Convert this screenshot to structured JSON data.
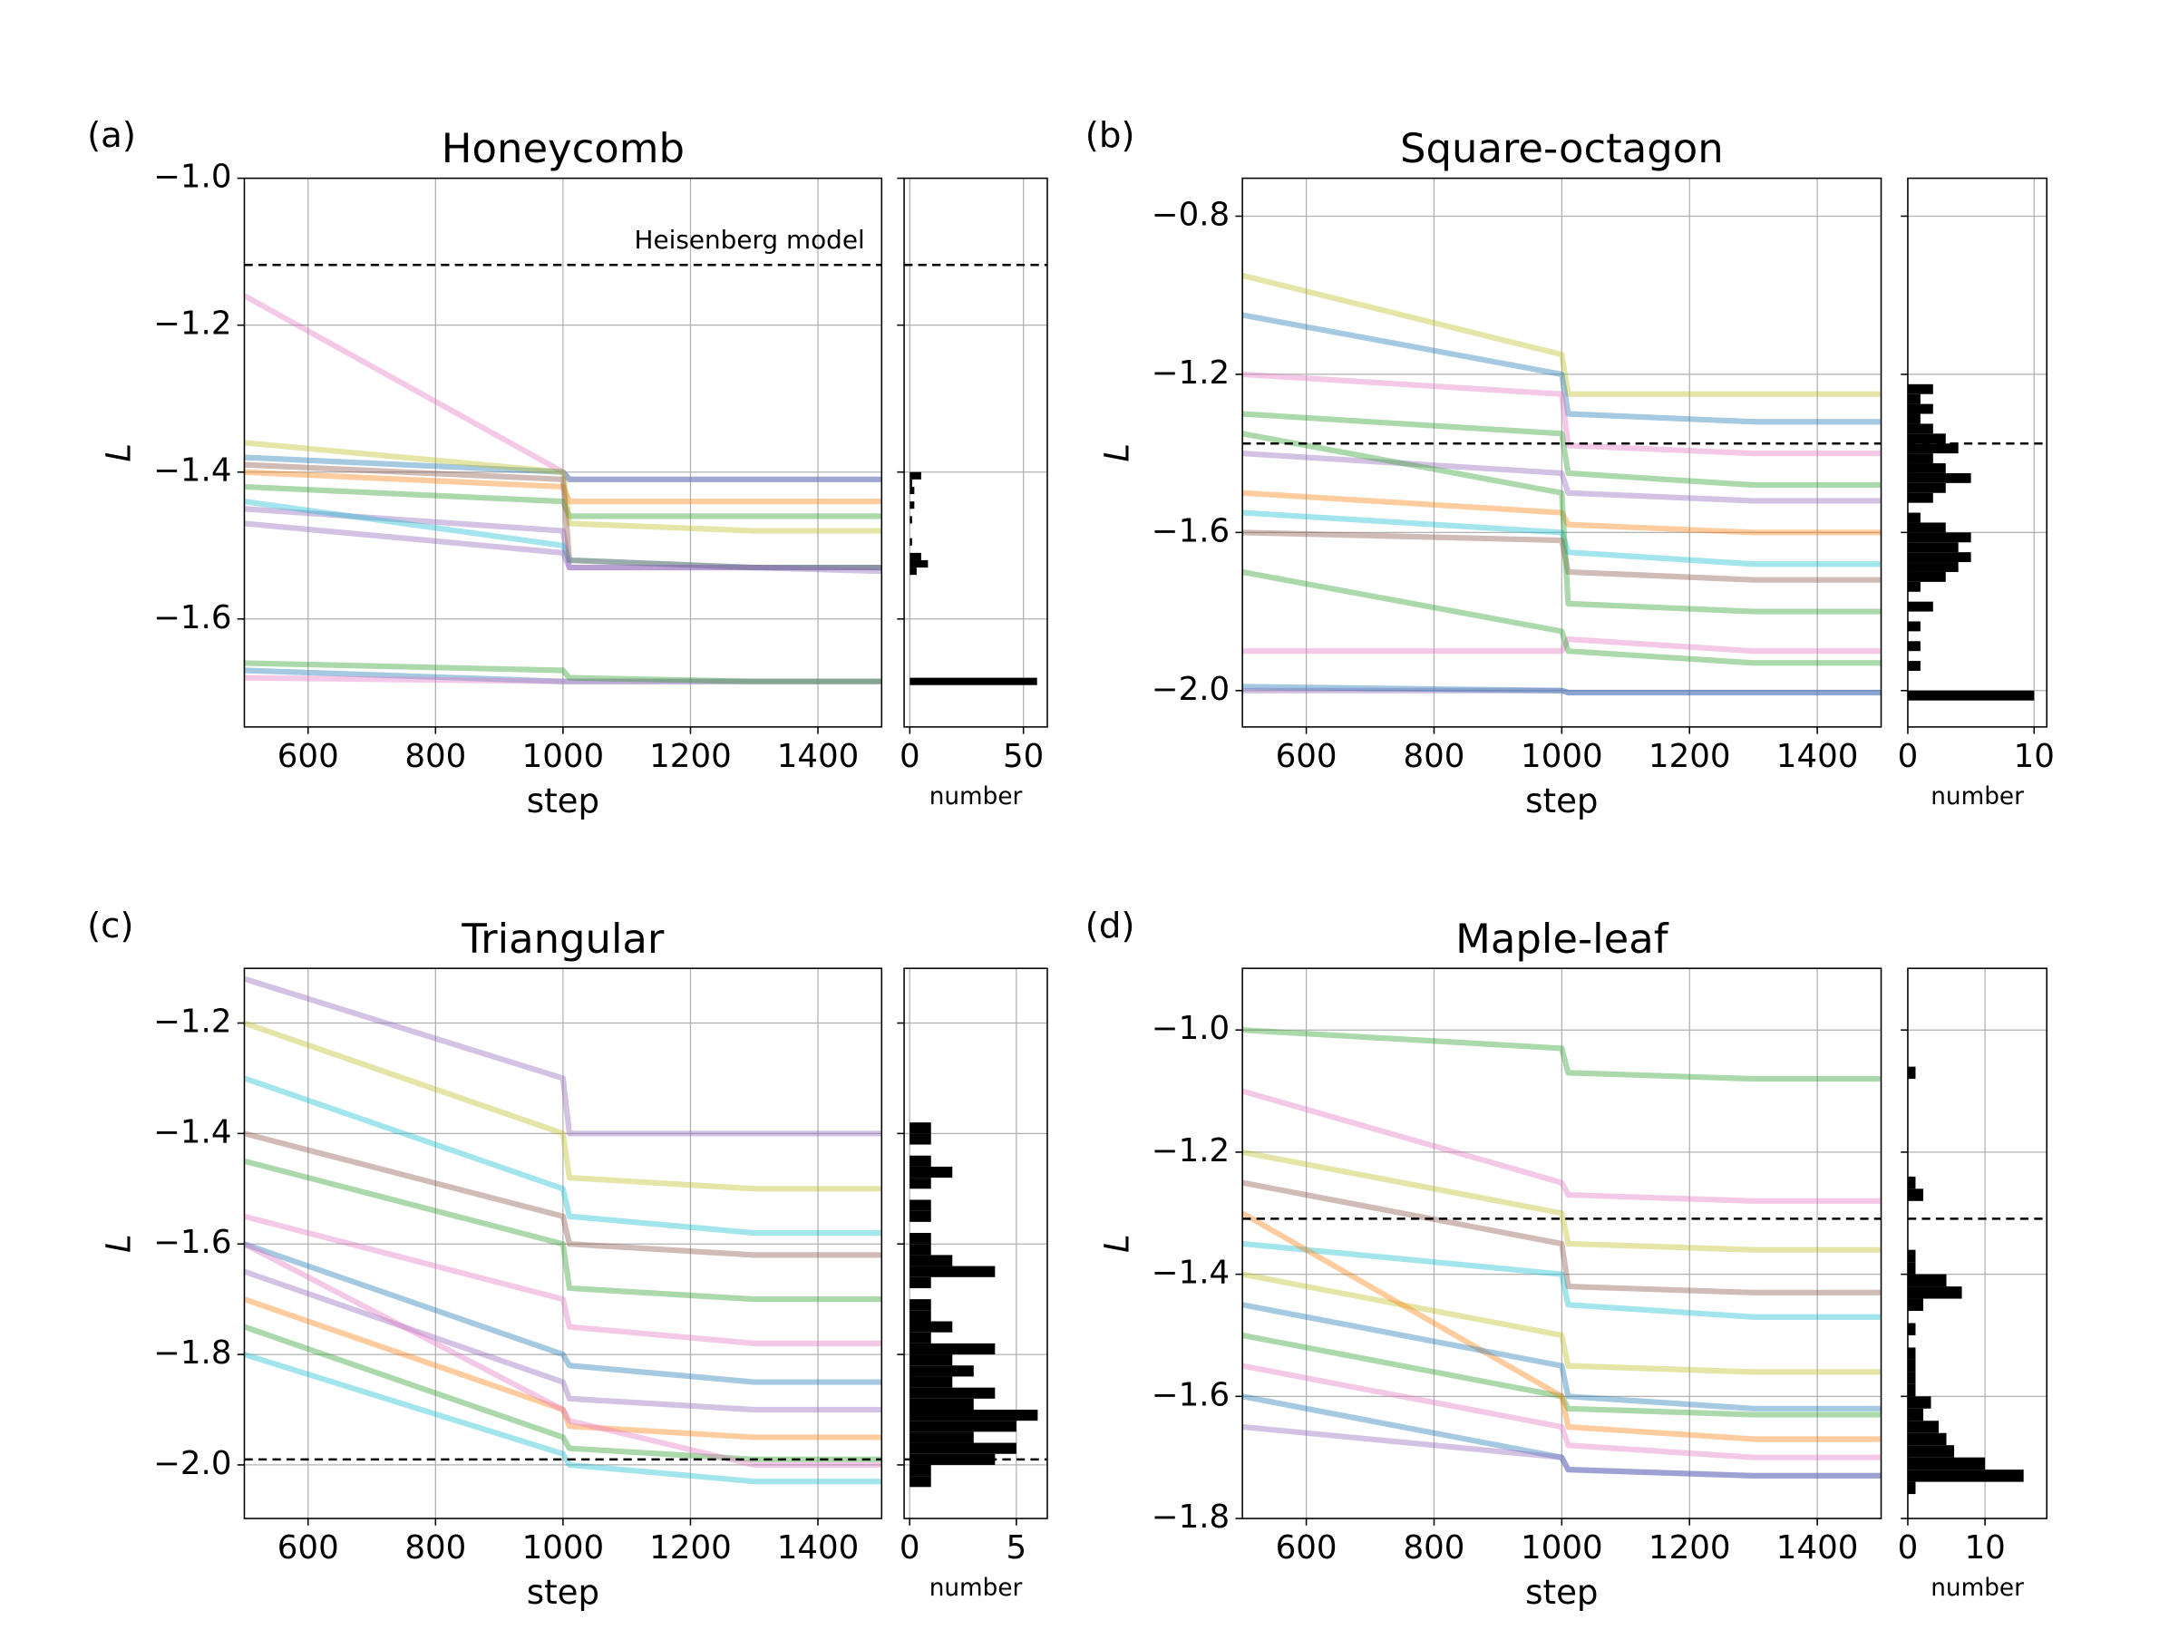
{
  "chart_data": [
    {
      "type": "line",
      "panel": "(a)",
      "title": "Honeycomb",
      "xlabel": "step",
      "ylabel": "L",
      "x": [
        500,
        1000,
        1010,
        1300,
        1500
      ],
      "xlim": [
        500,
        1500
      ],
      "xticks": [
        600,
        800,
        1000,
        1200,
        1400
      ],
      "ylim": [
        -1.747,
        -1.0
      ],
      "yticks": [
        {
          "value": -1.6,
          "label": "−1.6"
        },
        {
          "value": -1.4,
          "label": "−1.4"
        },
        {
          "value": -1.2,
          "label": "−1.2"
        },
        {
          "value": -1.0,
          "label": "−1.0"
        }
      ],
      "grid": true,
      "reference": -1.118,
      "annotation": "Heisenberg model",
      "series": [
        {
          "color": "#e377c2",
          "values": [
            -1.16,
            -1.4,
            -1.41,
            -1.41,
            -1.41
          ]
        },
        {
          "color": "#1f77b4",
          "values": [
            -1.38,
            -1.4,
            -1.41,
            -1.41,
            -1.41
          ]
        },
        {
          "color": "#ff7f0e",
          "values": [
            -1.4,
            -1.42,
            -1.44,
            -1.44,
            -1.44
          ]
        },
        {
          "color": "#2ca02c",
          "values": [
            -1.42,
            -1.44,
            -1.46,
            -1.46,
            -1.46
          ]
        },
        {
          "color": "#9467bd",
          "values": [
            -1.45,
            -1.48,
            -1.53,
            -1.53,
            -1.53
          ]
        },
        {
          "color": "#bcbd22",
          "values": [
            -1.36,
            -1.4,
            -1.47,
            -1.48,
            -1.48
          ]
        },
        {
          "color": "#17becf",
          "values": [
            -1.44,
            -1.5,
            -1.52,
            -1.53,
            -1.53
          ]
        },
        {
          "color": "#8c564b",
          "values": [
            -1.39,
            -1.41,
            -1.52,
            -1.53,
            -1.53
          ]
        },
        {
          "color": "#9467bd",
          "values": [
            -1.47,
            -1.51,
            -1.53,
            -1.53,
            -1.535
          ]
        },
        {
          "color": "#1f77b4",
          "values": [
            -1.67,
            -1.685,
            -1.685,
            -1.685,
            -1.685
          ]
        },
        {
          "color": "#e377c2",
          "values": [
            -1.68,
            -1.685,
            -1.685,
            -1.685,
            -1.685
          ]
        },
        {
          "color": "#2ca02c",
          "values": [
            -1.66,
            -1.67,
            -1.68,
            -1.685,
            -1.685
          ]
        }
      ],
      "histogram": {
        "type": "histogram",
        "xlabel": "number",
        "color": "#000000",
        "xlim": [
          -2.5,
          60.5
        ],
        "xticks": [
          0,
          50
        ],
        "bins": [
          -1.7,
          -1.69,
          -1.68,
          -1.67,
          -1.66,
          -1.65,
          -1.64,
          -1.63,
          -1.62,
          -1.61,
          -1.6,
          -1.59,
          -1.58,
          -1.57,
          -1.56,
          -1.55,
          -1.54,
          -1.53,
          -1.52,
          -1.51,
          -1.5,
          -1.49,
          -1.48,
          -1.47,
          -1.46,
          -1.45,
          -1.44,
          -1.43,
          -1.42,
          -1.41,
          -1.4
        ],
        "counts": [
          0,
          56,
          0,
          0,
          0,
          0,
          0,
          0,
          0,
          0,
          0,
          0,
          0,
          0,
          0,
          0,
          3,
          8,
          5,
          0,
          1,
          0,
          0,
          1,
          0,
          2,
          0,
          2,
          1,
          5
        ]
      }
    },
    {
      "type": "line",
      "panel": "(b)",
      "title": "Square-octagon",
      "xlabel": "step",
      "ylabel": "L",
      "x": [
        500,
        1000,
        1010,
        1300,
        1500
      ],
      "xlim": [
        500,
        1500
      ],
      "xticks": [
        600,
        800,
        1000,
        1200,
        1400
      ],
      "ylim": [
        -2.092,
        -0.704
      ],
      "yticks": [
        {
          "value": -2.0,
          "label": "−2.0"
        },
        {
          "value": -1.6,
          "label": "−1.6"
        },
        {
          "value": -1.2,
          "label": "−1.2"
        },
        {
          "value": -0.8,
          "label": "−0.8"
        }
      ],
      "grid": true,
      "reference": -1.375,
      "series": [
        {
          "color": "#bcbd22",
          "values": [
            -0.95,
            -1.15,
            -1.25,
            -1.25,
            -1.25
          ]
        },
        {
          "color": "#1f77b4",
          "values": [
            -1.05,
            -1.2,
            -1.3,
            -1.32,
            -1.32
          ]
        },
        {
          "color": "#e377c2",
          "values": [
            -1.2,
            -1.25,
            -1.38,
            -1.4,
            -1.4
          ]
        },
        {
          "color": "#2ca02c",
          "values": [
            -1.3,
            -1.35,
            -1.45,
            -1.48,
            -1.48
          ]
        },
        {
          "color": "#9467bd",
          "values": [
            -1.4,
            -1.45,
            -1.5,
            -1.52,
            -1.52
          ]
        },
        {
          "color": "#ff7f0e",
          "values": [
            -1.5,
            -1.55,
            -1.58,
            -1.6,
            -1.6
          ]
        },
        {
          "color": "#17becf",
          "values": [
            -1.55,
            -1.6,
            -1.65,
            -1.68,
            -1.68
          ]
        },
        {
          "color": "#8c564b",
          "values": [
            -1.6,
            -1.62,
            -1.7,
            -1.72,
            -1.72
          ]
        },
        {
          "color": "#2ca02c",
          "values": [
            -1.35,
            -1.5,
            -1.78,
            -1.8,
            -1.8
          ]
        },
        {
          "color": "#e377c2",
          "values": [
            -1.9,
            -1.9,
            -1.87,
            -1.9,
            -1.9
          ]
        },
        {
          "color": "#2ca02c",
          "values": [
            -1.7,
            -1.85,
            -1.9,
            -1.93,
            -1.93
          ]
        },
        {
          "color": "#9467bd",
          "values": [
            -2.0,
            -2.0,
            -2.005,
            -2.005,
            -2.005
          ]
        },
        {
          "color": "#1f77b4",
          "values": [
            -1.99,
            -2.0,
            -2.005,
            -2.005,
            -2.005
          ]
        }
      ],
      "histogram": {
        "type": "histogram",
        "xlabel": "number",
        "color": "#000000",
        "xlim": [
          0,
          11
        ],
        "xticks": [
          0,
          10
        ],
        "bins": [
          -2.025,
          -2.0,
          -1.975,
          -1.95,
          -1.925,
          -1.9,
          -1.875,
          -1.85,
          -1.825,
          -1.8,
          -1.775,
          -1.75,
          -1.725,
          -1.7,
          -1.675,
          -1.65,
          -1.625,
          -1.6,
          -1.575,
          -1.55,
          -1.525,
          -1.5,
          -1.475,
          -1.45,
          -1.425,
          -1.4,
          -1.375,
          -1.35,
          -1.325,
          -1.3,
          -1.275,
          -1.25,
          -1.225
        ],
        "counts": [
          10,
          0,
          0,
          1,
          0,
          1,
          0,
          1,
          0,
          2,
          0,
          1,
          3,
          4,
          5,
          4,
          5,
          3,
          1,
          0,
          2,
          3,
          5,
          3,
          2,
          4,
          3,
          2,
          1,
          2,
          1,
          2
        ]
      }
    },
    {
      "type": "line",
      "panel": "(c)",
      "title": "Triangular",
      "xlabel": "step",
      "ylabel": "L",
      "x": [
        500,
        1000,
        1010,
        1300,
        1500
      ],
      "xlim": [
        500,
        1500
      ],
      "xticks": [
        600,
        800,
        1000,
        1200,
        1400
      ],
      "ylim": [
        -2.097,
        -1.101
      ],
      "yticks": [
        {
          "value": -2.0,
          "label": "−2.0"
        },
        {
          "value": -1.8,
          "label": "−1.8"
        },
        {
          "value": -1.6,
          "label": "−1.6"
        },
        {
          "value": -1.4,
          "label": "−1.4"
        },
        {
          "value": -1.2,
          "label": "−1.2"
        }
      ],
      "grid": true,
      "reference": -1.99,
      "series": [
        {
          "color": "#9467bd",
          "values": [
            -1.12,
            -1.3,
            -1.4,
            -1.4,
            -1.4
          ]
        },
        {
          "color": "#bcbd22",
          "values": [
            -1.2,
            -1.4,
            -1.48,
            -1.5,
            -1.5
          ]
        },
        {
          "color": "#17becf",
          "values": [
            -1.3,
            -1.5,
            -1.55,
            -1.58,
            -1.58
          ]
        },
        {
          "color": "#8c564b",
          "values": [
            -1.4,
            -1.55,
            -1.6,
            -1.62,
            -1.62
          ]
        },
        {
          "color": "#2ca02c",
          "values": [
            -1.45,
            -1.6,
            -1.68,
            -1.7,
            -1.7
          ]
        },
        {
          "color": "#e377c2",
          "values": [
            -1.55,
            -1.7,
            -1.75,
            -1.78,
            -1.78
          ]
        },
        {
          "color": "#1f77b4",
          "values": [
            -1.6,
            -1.8,
            -1.82,
            -1.85,
            -1.85
          ]
        },
        {
          "color": "#9467bd",
          "values": [
            -1.65,
            -1.85,
            -1.88,
            -1.9,
            -1.9
          ]
        },
        {
          "color": "#ff7f0e",
          "values": [
            -1.7,
            -1.9,
            -1.93,
            -1.95,
            -1.95
          ]
        },
        {
          "color": "#2ca02c",
          "values": [
            -1.75,
            -1.95,
            -1.97,
            -1.99,
            -1.99
          ]
        },
        {
          "color": "#17becf",
          "values": [
            -1.8,
            -1.98,
            -2.0,
            -2.03,
            -2.03
          ]
        },
        {
          "color": "#e377c2",
          "values": [
            -1.6,
            -1.9,
            -1.92,
            -2.0,
            -2.0
          ]
        }
      ],
      "histogram": {
        "type": "histogram",
        "xlabel": "number",
        "color": "#000000",
        "xlim": [
          -0.26,
          6.45
        ],
        "xticks": [
          0,
          5
        ],
        "bins": [
          -2.04,
          -2.02,
          -2.0,
          -1.98,
          -1.96,
          -1.94,
          -1.92,
          -1.9,
          -1.88,
          -1.86,
          -1.84,
          -1.82,
          -1.8,
          -1.78,
          -1.76,
          -1.74,
          -1.72,
          -1.7,
          -1.68,
          -1.66,
          -1.64,
          -1.62,
          -1.6,
          -1.58,
          -1.56,
          -1.54,
          -1.52,
          -1.5,
          -1.48,
          -1.46,
          -1.44,
          -1.42,
          -1.4,
          -1.38
        ],
        "counts": [
          1,
          1,
          4,
          5,
          3,
          5,
          6,
          3,
          4,
          2,
          3,
          2,
          4,
          1,
          2,
          1,
          1,
          0,
          1,
          4,
          2,
          1,
          1,
          0,
          1,
          1,
          0,
          1,
          2,
          1,
          0,
          1,
          1
        ]
      }
    },
    {
      "type": "line",
      "panel": "(d)",
      "title": "Maple-leaf",
      "xlabel": "step",
      "ylabel": "L",
      "x": [
        500,
        1000,
        1010,
        1300,
        1500
      ],
      "xlim": [
        500,
        1500
      ],
      "xticks": [
        600,
        800,
        1000,
        1200,
        1400
      ],
      "ylim": [
        -1.8,
        -0.899
      ],
      "yticks": [
        {
          "value": -1.8,
          "label": "−1.8"
        },
        {
          "value": -1.6,
          "label": "−1.6"
        },
        {
          "value": -1.4,
          "label": "−1.4"
        },
        {
          "value": -1.2,
          "label": "−1.2"
        },
        {
          "value": -1.0,
          "label": "−1.0"
        }
      ],
      "grid": true,
      "reference": -1.309,
      "series": [
        {
          "color": "#2ca02c",
          "values": [
            -1.0,
            -1.03,
            -1.07,
            -1.08,
            -1.08
          ]
        },
        {
          "color": "#e377c2",
          "values": [
            -1.1,
            -1.25,
            -1.27,
            -1.28,
            -1.28
          ]
        },
        {
          "color": "#bcbd22",
          "values": [
            -1.2,
            -1.3,
            -1.35,
            -1.36,
            -1.36
          ]
        },
        {
          "color": "#8c564b",
          "values": [
            -1.25,
            -1.35,
            -1.42,
            -1.43,
            -1.43
          ]
        },
        {
          "color": "#17becf",
          "values": [
            -1.35,
            -1.4,
            -1.45,
            -1.47,
            -1.47
          ]
        },
        {
          "color": "#bcbd22",
          "values": [
            -1.4,
            -1.5,
            -1.55,
            -1.56,
            -1.56
          ]
        },
        {
          "color": "#2ca02c",
          "values": [
            -1.5,
            -1.6,
            -1.62,
            -1.63,
            -1.63
          ]
        },
        {
          "color": "#e377c2",
          "values": [
            -1.55,
            -1.65,
            -1.68,
            -1.7,
            -1.7
          ]
        },
        {
          "color": "#1f77b4",
          "values": [
            -1.6,
            -1.7,
            -1.72,
            -1.73,
            -1.73
          ]
        },
        {
          "color": "#9467bd",
          "values": [
            -1.65,
            -1.7,
            -1.72,
            -1.73,
            -1.73
          ]
        },
        {
          "color": "#ff7f0e",
          "values": [
            -1.3,
            -1.6,
            -1.65,
            -1.67,
            -1.67
          ]
        },
        {
          "color": "#1f77b4",
          "values": [
            -1.45,
            -1.55,
            -1.6,
            -1.62,
            -1.62
          ]
        }
      ],
      "histogram": {
        "type": "histogram",
        "xlabel": "number",
        "color": "#000000",
        "xlim": [
          0,
          18
        ],
        "xticks": [
          0,
          10
        ],
        "bins": [
          -1.76,
          -1.74,
          -1.72,
          -1.7,
          -1.68,
          -1.66,
          -1.64,
          -1.62,
          -1.6,
          -1.58,
          -1.56,
          -1.54,
          -1.52,
          -1.5,
          -1.48,
          -1.46,
          -1.44,
          -1.42,
          -1.4,
          -1.38,
          -1.36,
          -1.34,
          -1.32,
          -1.3,
          -1.28,
          -1.26,
          -1.24,
          -1.22,
          -1.2,
          -1.18,
          -1.16,
          -1.14,
          -1.12,
          -1.1,
          -1.08,
          -1.06
        ],
        "counts": [
          1,
          15,
          10,
          6,
          5,
          4,
          2,
          3,
          1,
          1,
          1,
          1,
          0,
          1,
          0,
          2,
          7,
          5,
          1,
          1,
          0,
          0,
          0,
          0,
          2,
          1,
          0,
          0,
          0,
          0,
          0,
          0,
          0,
          0,
          1
        ]
      }
    }
  ]
}
